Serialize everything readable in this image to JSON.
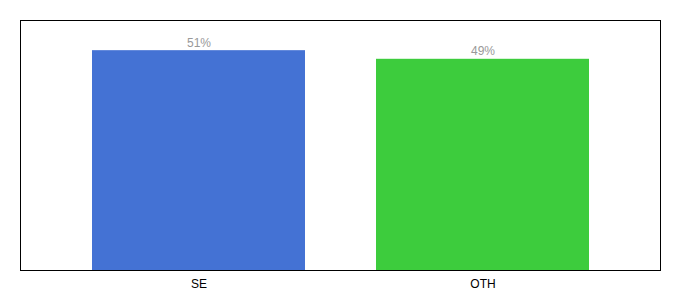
{
  "chart_data": {
    "type": "bar",
    "categories": [
      "SE",
      "OTH"
    ],
    "values": [
      51,
      49
    ],
    "value_labels": [
      "51%",
      "49%"
    ],
    "colors": [
      "#4472d4",
      "#3dcc3d"
    ],
    "ylim": [
      0,
      58
    ],
    "yticks": [],
    "tick_labels": "x",
    "data_labels": true,
    "grid": false
  }
}
